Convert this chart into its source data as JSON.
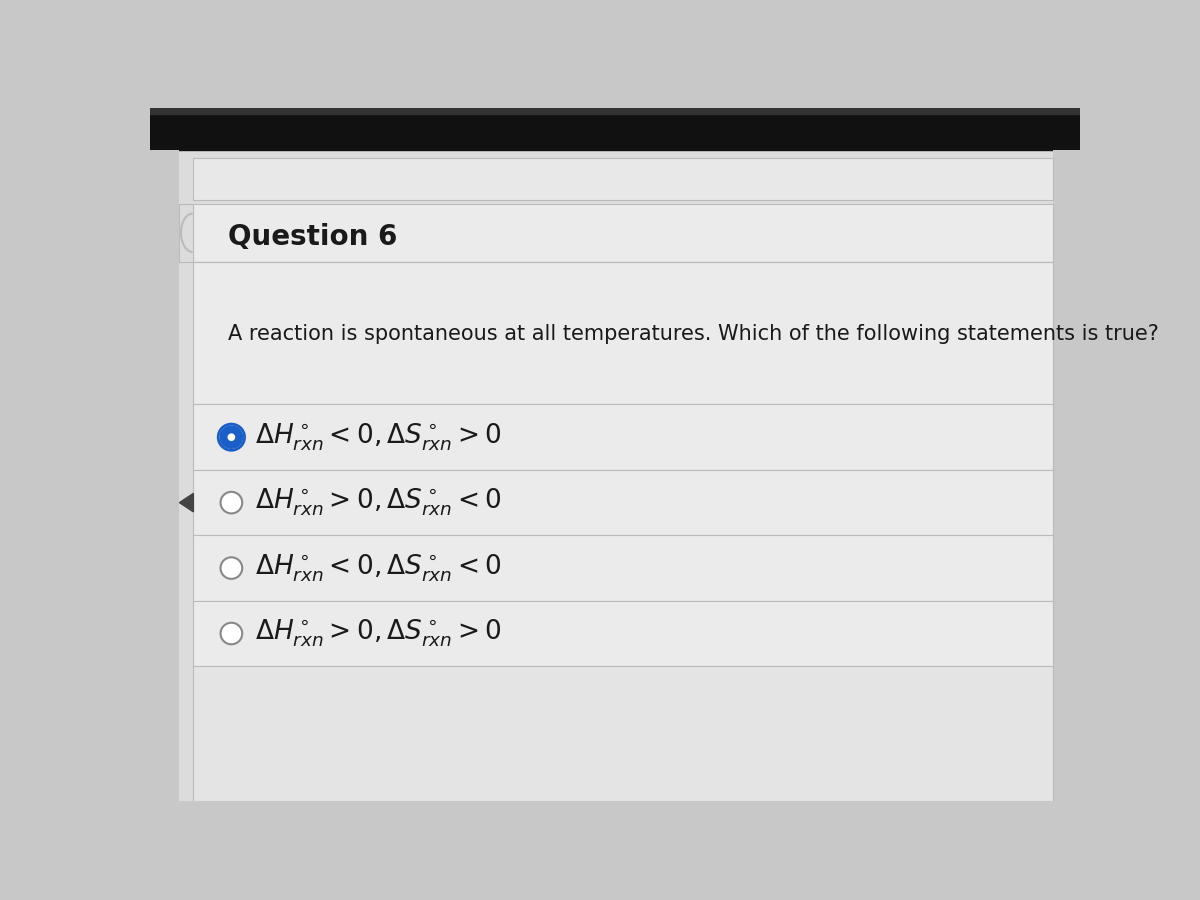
{
  "title": "Question 6",
  "question_text": "A reaction is spontaneous at all temperatures. Which of the following statements is true?",
  "options": [
    {
      "label": "$\\Delta H^\\circ_{rxn} < 0, \\Delta S^\\circ_{rxn} > 0$",
      "selected": true
    },
    {
      "label": "$\\Delta H^\\circ_{rxn} > 0, \\Delta S^\\circ_{rxn} < 0$",
      "selected": false
    },
    {
      "label": "$\\Delta H^\\circ_{rxn} < 0, \\Delta S^\\circ_{rxn} < 0$",
      "selected": false
    },
    {
      "label": "$\\Delta H^\\circ_{rxn} > 0, \\Delta S^\\circ_{rxn} > 0$",
      "selected": false
    }
  ],
  "bg_color": "#c8c8c8",
  "page_color": "#dcdcdc",
  "card_color": "#ebebeb",
  "top_bar_color": "#111111",
  "title_fontsize": 20,
  "question_fontsize": 15,
  "option_fontsize": 19,
  "selected_circle_fill": "#1a5fc8",
  "selected_circle_edge": "#1a5fc8",
  "unselected_circle_fill": "#ffffff",
  "unselected_circle_edge": "#888888",
  "text_color": "#1a1a1a",
  "line_color": "#bbbbbb",
  "top_nav_bar_color": "#e8e8e8",
  "bottom_card_color": "#e4e4e4"
}
